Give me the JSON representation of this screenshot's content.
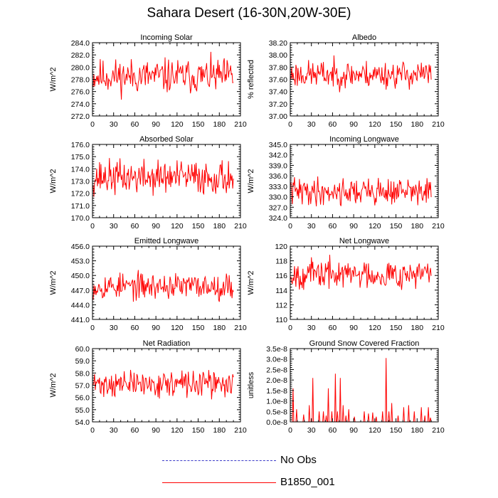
{
  "title": "Sahara Desert (16-30N,20W-30E)",
  "legend": [
    {
      "label": "No Obs",
      "color": "#3a3ac8",
      "style": "dashed"
    },
    {
      "label": "B1850_001",
      "color": "#ff0000",
      "style": "solid"
    }
  ],
  "chart_data": [
    {
      "type": "line",
      "title": "Incoming Solar",
      "ylabel": "W/m^2",
      "xlim": [
        0,
        210
      ],
      "ylim": [
        272,
        284
      ],
      "x_ticks": [
        0,
        30,
        60,
        90,
        120,
        150,
        180,
        210
      ],
      "y_ticks": [
        "272.0",
        "274.0",
        "276.0",
        "278.0",
        "280.0",
        "282.0",
        "284.0"
      ],
      "y_tick_values": [
        272,
        274,
        276,
        278,
        280,
        282,
        284
      ],
      "series": {
        "name": "B1850_001",
        "mean": 278.5,
        "amp": 2.0,
        "seed": 11,
        "n": 200
      }
    },
    {
      "type": "line",
      "title": "Albedo",
      "ylabel": "% reflected",
      "xlim": [
        0,
        210
      ],
      "ylim": [
        37.0,
        38.2
      ],
      "x_ticks": [
        0,
        30,
        60,
        90,
        120,
        150,
        180,
        210
      ],
      "y_ticks": [
        "37.00",
        "37.20",
        "37.40",
        "37.60",
        "37.80",
        "38.00",
        "38.20"
      ],
      "y_tick_values": [
        37.0,
        37.2,
        37.4,
        37.6,
        37.8,
        38.0,
        38.2
      ],
      "series": {
        "name": "B1850_001",
        "mean": 37.68,
        "amp": 0.16,
        "seed": 23,
        "n": 200
      }
    },
    {
      "type": "line",
      "title": "Absorbed Solar",
      "ylabel": "W/m^2",
      "xlim": [
        0,
        210
      ],
      "ylim": [
        170,
        176
      ],
      "x_ticks": [
        0,
        30,
        60,
        90,
        120,
        150,
        180,
        210
      ],
      "y_ticks": [
        "170.0",
        "171.0",
        "172.0",
        "173.0",
        "174.0",
        "175.0",
        "176.0"
      ],
      "y_tick_values": [
        170,
        171,
        172,
        173,
        174,
        175,
        176
      ],
      "series": {
        "name": "B1850_001",
        "mean": 173.3,
        "amp": 1.0,
        "seed": 37,
        "n": 200
      }
    },
    {
      "type": "line",
      "title": "Incoming Longwave",
      "ylabel": "W/m^2",
      "xlim": [
        0,
        210
      ],
      "ylim": [
        324,
        345
      ],
      "x_ticks": [
        0,
        30,
        60,
        90,
        120,
        150,
        180,
        210
      ],
      "y_ticks": [
        "324.0",
        "327.0",
        "330.0",
        "333.0",
        "336.0",
        "339.0",
        "342.0",
        "345.0"
      ],
      "y_tick_values": [
        324,
        327,
        330,
        333,
        336,
        339,
        342,
        345
      ],
      "series": {
        "name": "B1850_001",
        "mean": 331.5,
        "amp": 2.8,
        "seed": 41,
        "n": 200
      }
    },
    {
      "type": "line",
      "title": "Emitted Longwave",
      "ylabel": "W/m^2",
      "xlim": [
        0,
        210
      ],
      "ylim": [
        441,
        456
      ],
      "x_ticks": [
        0,
        30,
        60,
        90,
        120,
        150,
        180,
        210
      ],
      "y_ticks": [
        "441.0",
        "444.0",
        "447.0",
        "450.0",
        "453.0",
        "456.0"
      ],
      "y_tick_values": [
        441,
        444,
        447,
        450,
        453,
        456
      ],
      "series": {
        "name": "B1850_001",
        "mean": 447.8,
        "amp": 1.9,
        "seed": 53,
        "n": 200
      }
    },
    {
      "type": "line",
      "title": "Net Longwave",
      "ylabel": "W/m^2",
      "xlim": [
        0,
        210
      ],
      "ylim": [
        110,
        120
      ],
      "x_ticks": [
        0,
        30,
        60,
        90,
        120,
        150,
        180,
        210
      ],
      "y_ticks": [
        "110",
        "112",
        "114",
        "116",
        "118",
        "120"
      ],
      "y_tick_values": [
        110,
        112,
        114,
        116,
        118,
        120
      ],
      "series": {
        "name": "B1850_001",
        "mean": 116.2,
        "amp": 1.4,
        "seed": 67,
        "n": 200
      }
    },
    {
      "type": "line",
      "title": "Net Radiation",
      "ylabel": "W/m^2",
      "xlim": [
        0,
        210
      ],
      "ylim": [
        54,
        60
      ],
      "x_ticks": [
        0,
        30,
        60,
        90,
        120,
        150,
        180,
        210
      ],
      "y_ticks": [
        "54.0",
        "55.0",
        "56.0",
        "57.0",
        "58.0",
        "59.0",
        "60.0"
      ],
      "y_tick_values": [
        54,
        55,
        56,
        57,
        58,
        59,
        60
      ],
      "series": {
        "name": "B1850_001",
        "mean": 57.1,
        "amp": 0.75,
        "seed": 71,
        "n": 200
      }
    },
    {
      "type": "line",
      "title": "Ground Snow Covered Fraction",
      "ylabel": "unitless",
      "xlim": [
        0,
        210
      ],
      "ylim": [
        0,
        3.5e-08
      ],
      "x_ticks": [
        0,
        30,
        60,
        90,
        120,
        150,
        180,
        210
      ],
      "y_ticks": [
        "0.0e-8",
        "0.5e-8",
        "1.0e-8",
        "1.5e-8",
        "2.0e-8",
        "2.5e-8",
        "3.0e-8",
        "3.5e-8"
      ],
      "y_tick_values": [
        0,
        5e-09,
        1e-08,
        1.5e-08,
        2e-08,
        2.5e-08,
        3e-08,
        3.5e-08
      ],
      "series": {
        "name": "B1850_001",
        "mean": 0,
        "amp": 0,
        "seed": 83,
        "n": 200,
        "spiky": true,
        "spikes": [
          [
            3,
            1.6e-08
          ],
          [
            8,
            6e-09
          ],
          [
            18,
            3.5e-09
          ],
          [
            26,
            8e-09
          ],
          [
            31,
            2.1e-08
          ],
          [
            40,
            5e-09
          ],
          [
            46,
            5e-09
          ],
          [
            50,
            3e-09
          ],
          [
            53,
            1.6e-08
          ],
          [
            58,
            5e-09
          ],
          [
            63,
            2.3e-08
          ],
          [
            66,
            5e-09
          ],
          [
            70,
            2.1e-08
          ],
          [
            74,
            8e-09
          ],
          [
            78,
            3e-09
          ],
          [
            82,
            6e-09
          ],
          [
            90,
            2.5e-09
          ],
          [
            104,
            5e-09
          ],
          [
            110,
            4e-09
          ],
          [
            116,
            4.5e-09
          ],
          [
            121,
            2.5e-09
          ],
          [
            130,
            5e-09
          ],
          [
            135,
            3.05e-08
          ],
          [
            139,
            5e-09
          ],
          [
            143,
            9e-09
          ],
          [
            152,
            3e-09
          ],
          [
            160,
            7e-09
          ],
          [
            167,
            8e-09
          ],
          [
            175,
            5e-09
          ],
          [
            185,
            7e-09
          ],
          [
            190,
            3e-09
          ],
          [
            195,
            7e-09
          ],
          [
            198,
            2e-09
          ]
        ]
      }
    }
  ]
}
